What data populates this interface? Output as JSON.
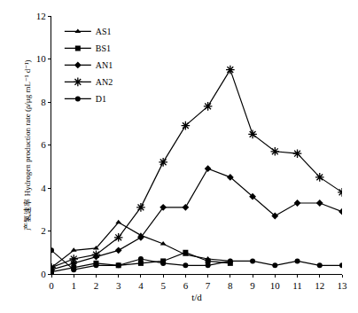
{
  "chart_data": {
    "type": "line",
    "x_label": "t/d",
    "y_label": "产氢速率 Hydrogen production rate (ρ/μg mL⁻¹ d⁻¹)",
    "xlim": [
      0,
      13
    ],
    "xticks": [
      0,
      1,
      2,
      3,
      4,
      5,
      6,
      7,
      8,
      9,
      10,
      11,
      12,
      13
    ],
    "ylim": [
      0,
      12
    ],
    "yticks": [
      0,
      2,
      4,
      6,
      8,
      10,
      12
    ],
    "grid": false,
    "legend": "upper left",
    "series": [
      {
        "name": "AS1",
        "color": "#000000",
        "marker": "triangle",
        "line_style": "solid",
        "x": [
          0,
          1,
          2,
          3,
          4,
          5,
          6,
          7,
          8
        ],
        "values": [
          0.3,
          1.1,
          1.2,
          2.4,
          1.8,
          1.4,
          0.9,
          0.7,
          0.6
        ]
      },
      {
        "name": "BS1",
        "color": "#000000",
        "marker": "square",
        "line_style": "solid",
        "x": [
          0,
          1,
          2,
          3,
          4,
          5,
          6,
          7,
          8
        ],
        "values": [
          0.1,
          0.3,
          0.5,
          0.4,
          0.5,
          0.6,
          1.0,
          0.6,
          0.5
        ]
      },
      {
        "name": "AN1",
        "color": "#000000",
        "marker": "diamond",
        "line_style": "solid",
        "x": [
          0,
          1,
          2,
          3,
          4,
          5,
          6,
          7,
          8,
          9,
          10,
          11,
          12,
          13
        ],
        "values": [
          0.2,
          0.5,
          0.8,
          1.1,
          1.7,
          3.1,
          3.1,
          4.9,
          4.5,
          3.6,
          2.7,
          3.3,
          3.3,
          2.9
        ]
      },
      {
        "name": "AN2",
        "color": "#000000",
        "marker": "asterisk",
        "line_style": "solid",
        "x": [
          0,
          1,
          2,
          3,
          4,
          5,
          6,
          7,
          8,
          9,
          10,
          11,
          12,
          13
        ],
        "values": [
          0.3,
          0.7,
          0.9,
          1.7,
          3.1,
          5.2,
          6.9,
          7.8,
          9.5,
          6.5,
          5.7,
          5.6,
          4.5,
          3.8
        ]
      },
      {
        "name": "D1",
        "color": "#000000",
        "marker": "circle",
        "line_style": "solid",
        "x": [
          0,
          1,
          2,
          3,
          4,
          5,
          6,
          7,
          8,
          9,
          10,
          11,
          12,
          13
        ],
        "values": [
          1.1,
          0.2,
          0.4,
          0.4,
          0.7,
          0.5,
          0.4,
          0.4,
          0.6,
          0.6,
          0.4,
          0.6,
          0.4,
          0.4
        ]
      }
    ]
  }
}
